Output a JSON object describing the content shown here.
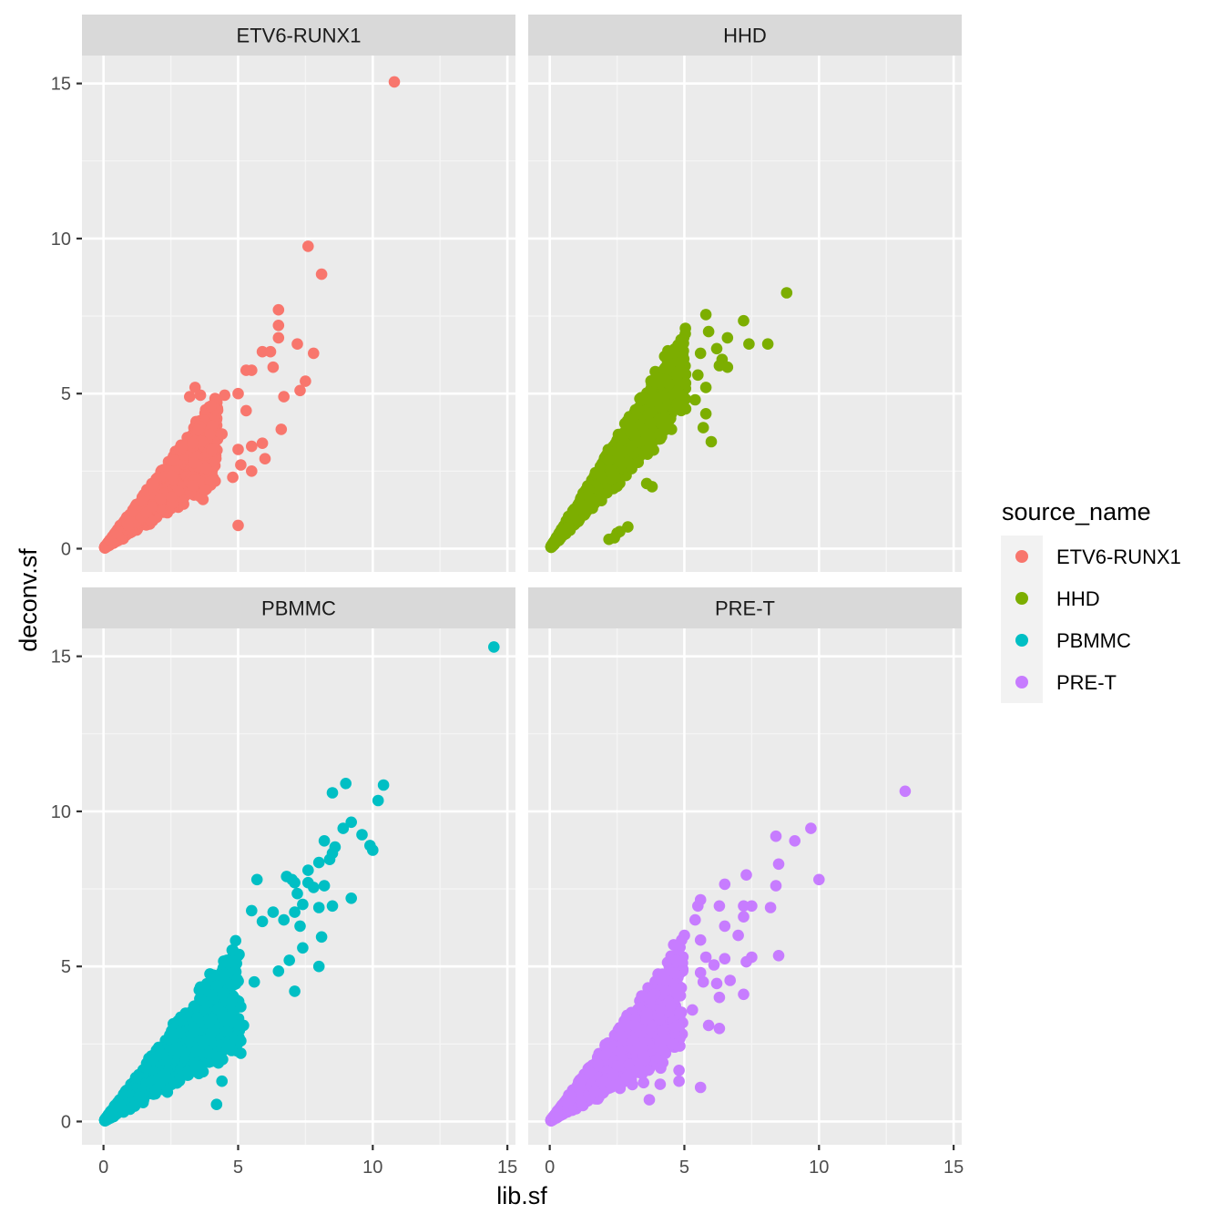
{
  "chart_data": {
    "type": "scatter",
    "xlabel": "lib.sf",
    "ylabel": "deconv.sf",
    "xlim": [
      -0.8,
      15.3
    ],
    "ylim": [
      -0.75,
      15.9
    ],
    "x_ticks": [
      0,
      5,
      10,
      15
    ],
    "y_ticks": [
      0,
      5,
      10,
      15
    ],
    "grid": true,
    "legend": {
      "title": "source_name",
      "position": "right",
      "entries": [
        "ETV6-RUNX1",
        "HHD",
        "PBMMC",
        "PRE-T"
      ]
    },
    "colors": {
      "ETV6-RUNX1": "#F8766D",
      "HHD": "#7CAE00",
      "PBMMC": "#00BFC4",
      "PRE-T": "#C77CFF"
    },
    "panels": [
      {
        "name": "ETV6-RUNX1",
        "bulk_slope": [
          0.65,
          1.3
        ],
        "bulk_xmax": 4.2,
        "outliers": [
          [
            10.8,
            15.05
          ],
          [
            7.6,
            9.75
          ],
          [
            8.1,
            8.85
          ],
          [
            6.5,
            7.7
          ],
          [
            6.5,
            7.2
          ],
          [
            5.9,
            6.35
          ],
          [
            6.2,
            6.35
          ],
          [
            6.5,
            6.8
          ],
          [
            7.2,
            6.6
          ],
          [
            7.8,
            6.3
          ],
          [
            6.3,
            5.85
          ],
          [
            5.5,
            5.75
          ],
          [
            5.3,
            5.75
          ],
          [
            7.5,
            5.4
          ],
          [
            7.3,
            5.1
          ],
          [
            6.7,
            4.9
          ],
          [
            5.0,
            5.0
          ],
          [
            4.5,
            4.95
          ],
          [
            3.4,
            5.2
          ],
          [
            3.6,
            4.95
          ],
          [
            3.2,
            4.9
          ],
          [
            4.0,
            4.6
          ],
          [
            5.3,
            4.45
          ],
          [
            6.6,
            3.85
          ],
          [
            5.9,
            3.4
          ],
          [
            5.5,
            3.3
          ],
          [
            5.0,
            3.2
          ],
          [
            6.0,
            2.9
          ],
          [
            5.1,
            2.7
          ],
          [
            5.5,
            2.5
          ],
          [
            5.0,
            0.75
          ],
          [
            4.8,
            2.3
          ],
          [
            4.4,
            3.7
          ],
          [
            3.8,
            2.6
          ]
        ]
      },
      {
        "name": "HHD",
        "bulk_slope": [
          1.0,
          1.55
        ],
        "bulk_xmax": 5.0,
        "outliers": [
          [
            8.8,
            8.25
          ],
          [
            5.8,
            7.55
          ],
          [
            7.2,
            7.35
          ],
          [
            5.9,
            7.0
          ],
          [
            6.6,
            6.8
          ],
          [
            5.6,
            6.3
          ],
          [
            6.2,
            6.45
          ],
          [
            7.4,
            6.6
          ],
          [
            8.1,
            6.6
          ],
          [
            6.4,
            6.1
          ],
          [
            6.3,
            5.9
          ],
          [
            6.6,
            5.85
          ],
          [
            5.5,
            5.6
          ],
          [
            5.8,
            5.2
          ],
          [
            5.4,
            4.8
          ],
          [
            5.8,
            4.35
          ],
          [
            5.7,
            3.9
          ],
          [
            6.0,
            3.45
          ],
          [
            3.8,
            2.0
          ],
          [
            3.6,
            2.1
          ],
          [
            2.9,
            0.7
          ],
          [
            2.6,
            0.55
          ],
          [
            2.5,
            0.5
          ],
          [
            2.2,
            0.3
          ],
          [
            2.4,
            0.35
          ]
        ]
      },
      {
        "name": "PBMMC",
        "bulk_slope": [
          0.6,
          1.3
        ],
        "bulk_xmax": 5.0,
        "outliers": [
          [
            14.5,
            15.3
          ],
          [
            9.0,
            10.9
          ],
          [
            10.4,
            10.85
          ],
          [
            8.5,
            10.6
          ],
          [
            10.2,
            10.35
          ],
          [
            9.2,
            9.65
          ],
          [
            8.9,
            9.45
          ],
          [
            9.6,
            9.25
          ],
          [
            9.9,
            8.9
          ],
          [
            10.0,
            8.75
          ],
          [
            8.2,
            9.05
          ],
          [
            8.6,
            8.85
          ],
          [
            8.4,
            8.45
          ],
          [
            8.5,
            8.65
          ],
          [
            8.0,
            8.35
          ],
          [
            7.6,
            8.1
          ],
          [
            7.1,
            7.7
          ],
          [
            5.7,
            7.8
          ],
          [
            6.8,
            7.9
          ],
          [
            7.0,
            7.8
          ],
          [
            7.6,
            7.7
          ],
          [
            7.8,
            7.55
          ],
          [
            8.2,
            7.6
          ],
          [
            7.2,
            7.35
          ],
          [
            7.4,
            7.0
          ],
          [
            8.0,
            6.9
          ],
          [
            8.5,
            6.95
          ],
          [
            9.2,
            7.2
          ],
          [
            7.1,
            6.75
          ],
          [
            6.3,
            6.75
          ],
          [
            5.5,
            6.8
          ],
          [
            5.9,
            6.45
          ],
          [
            6.7,
            6.5
          ],
          [
            7.3,
            6.3
          ],
          [
            8.1,
            5.95
          ],
          [
            7.4,
            5.6
          ],
          [
            6.9,
            5.2
          ],
          [
            8.0,
            5.0
          ],
          [
            7.1,
            4.2
          ],
          [
            6.5,
            4.85
          ],
          [
            5.6,
            4.5
          ],
          [
            5.1,
            3.7
          ],
          [
            5.2,
            3.1
          ],
          [
            5.1,
            2.6
          ],
          [
            4.6,
            2.9
          ],
          [
            5.1,
            2.2
          ],
          [
            4.2,
            0.55
          ],
          [
            4.4,
            1.3
          ]
        ]
      },
      {
        "name": "PRE-T",
        "bulk_slope": [
          0.6,
          1.3
        ],
        "bulk_xmax": 4.9,
        "outliers": [
          [
            13.2,
            10.65
          ],
          [
            9.7,
            9.45
          ],
          [
            8.4,
            9.2
          ],
          [
            9.1,
            9.05
          ],
          [
            8.5,
            8.3
          ],
          [
            10.0,
            7.8
          ],
          [
            7.3,
            7.95
          ],
          [
            6.5,
            7.65
          ],
          [
            8.4,
            7.6
          ],
          [
            5.6,
            7.15
          ],
          [
            5.5,
            6.95
          ],
          [
            6.3,
            6.95
          ],
          [
            7.2,
            6.95
          ],
          [
            7.5,
            6.95
          ],
          [
            8.2,
            6.9
          ],
          [
            7.2,
            6.6
          ],
          [
            5.4,
            6.5
          ],
          [
            6.5,
            6.3
          ],
          [
            7.0,
            6.0
          ],
          [
            5.0,
            6.0
          ],
          [
            5.6,
            5.85
          ],
          [
            4.9,
            5.85
          ],
          [
            4.6,
            5.7
          ],
          [
            5.8,
            5.3
          ],
          [
            6.1,
            5.05
          ],
          [
            6.5,
            5.25
          ],
          [
            7.3,
            5.15
          ],
          [
            7.5,
            5.3
          ],
          [
            8.5,
            5.35
          ],
          [
            5.6,
            4.8
          ],
          [
            6.2,
            4.45
          ],
          [
            6.7,
            4.55
          ],
          [
            5.7,
            4.5
          ],
          [
            6.3,
            4.0
          ],
          [
            5.3,
            3.6
          ],
          [
            5.9,
            3.1
          ],
          [
            6.3,
            3.0
          ],
          [
            7.2,
            4.1
          ],
          [
            4.3,
            2.2
          ],
          [
            4.2,
            1.9
          ],
          [
            4.8,
            1.65
          ],
          [
            4.8,
            1.3
          ],
          [
            5.6,
            1.1
          ],
          [
            4.1,
            1.2
          ],
          [
            3.7,
            0.7
          ]
        ]
      }
    ]
  }
}
